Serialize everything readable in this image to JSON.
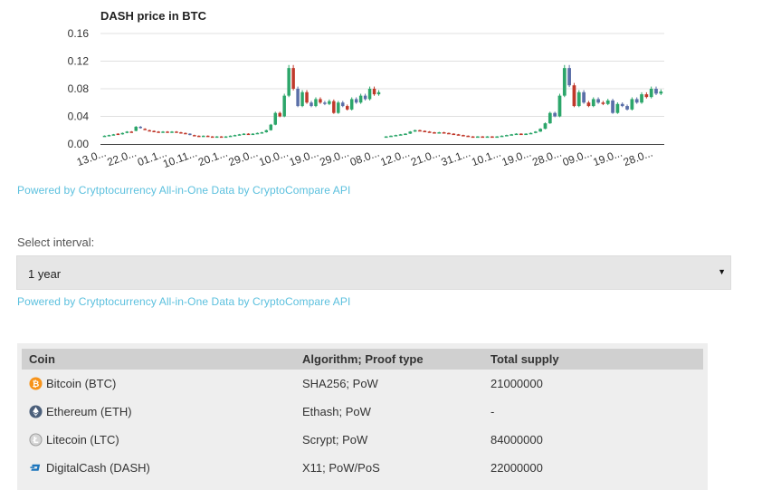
{
  "chart_data": {
    "type": "candlestick",
    "title": "DASH price in BTC",
    "y_ticks": [
      "0.16",
      "0.12",
      "0.08",
      "0.04",
      "0.00"
    ],
    "ylim": [
      0,
      0.16
    ],
    "x_ticks": [
      "13.0...",
      "22.0...",
      "01.1...",
      "10.11...",
      "20.1...",
      "29.0...",
      "10.0...",
      "19.0...",
      "29.0...",
      "08.0...",
      "12.0...",
      "21.0...",
      "31.1...",
      "10.1...",
      "19.0...",
      "28.0...",
      "09.0...",
      "19.0...",
      "28.0..."
    ],
    "panels": [
      {
        "candles": [
          [
            0.011,
            0.012
          ],
          [
            0.012,
            0.013
          ],
          [
            0.013,
            0.014
          ],
          [
            0.015,
            0.014
          ],
          [
            0.014,
            0.016
          ],
          [
            0.016,
            0.018
          ],
          [
            0.018,
            0.017
          ],
          [
            0.019,
            0.025
          ],
          [
            0.025,
            0.023
          ],
          [
            0.022,
            0.021
          ],
          [
            0.02,
            0.019
          ],
          [
            0.019,
            0.018
          ],
          [
            0.018,
            0.017
          ],
          [
            0.017,
            0.018
          ],
          [
            0.018,
            0.017
          ],
          [
            0.017,
            0.018
          ],
          [
            0.018,
            0.017
          ],
          [
            0.017,
            0.016
          ],
          [
            0.016,
            0.015
          ],
          [
            0.015,
            0.013
          ],
          [
            0.013,
            0.012
          ],
          [
            0.012,
            0.011
          ],
          [
            0.011,
            0.012
          ],
          [
            0.012,
            0.011
          ],
          [
            0.011,
            0.01
          ],
          [
            0.01,
            0.011
          ],
          [
            0.011,
            0.01
          ],
          [
            0.01,
            0.011
          ],
          [
            0.011,
            0.012
          ],
          [
            0.012,
            0.013
          ],
          [
            0.013,
            0.014
          ],
          [
            0.014,
            0.015
          ],
          [
            0.015,
            0.014
          ],
          [
            0.014,
            0.015
          ],
          [
            0.015,
            0.016
          ],
          [
            0.016,
            0.017
          ],
          [
            0.017,
            0.02
          ],
          [
            0.02,
            0.028
          ],
          [
            0.028,
            0.045
          ],
          [
            0.045,
            0.04
          ],
          [
            0.04,
            0.07
          ],
          [
            0.07,
            0.11
          ],
          [
            0.11,
            0.08
          ],
          [
            0.08,
            0.055
          ],
          [
            0.055,
            0.075
          ],
          [
            0.075,
            0.06
          ],
          [
            0.06,
            0.055
          ],
          [
            0.055,
            0.065
          ],
          [
            0.065,
            0.06
          ],
          [
            0.06,
            0.058
          ],
          [
            0.058,
            0.062
          ],
          [
            0.062,
            0.045
          ],
          [
            0.045,
            0.06
          ],
          [
            0.06,
            0.055
          ],
          [
            0.055,
            0.05
          ],
          [
            0.05,
            0.065
          ],
          [
            0.065,
            0.06
          ],
          [
            0.06,
            0.07
          ],
          [
            0.07,
            0.065
          ],
          [
            0.065,
            0.08
          ],
          [
            0.08,
            0.072
          ],
          [
            0.072,
            0.075
          ]
        ]
      },
      {
        "candles": [
          [
            0.01,
            0.011
          ],
          [
            0.011,
            0.012
          ],
          [
            0.012,
            0.013
          ],
          [
            0.013,
            0.014
          ],
          [
            0.014,
            0.015
          ],
          [
            0.015,
            0.018
          ],
          [
            0.018,
            0.02
          ],
          [
            0.02,
            0.019
          ],
          [
            0.019,
            0.018
          ],
          [
            0.018,
            0.017
          ],
          [
            0.017,
            0.016
          ],
          [
            0.016,
            0.017
          ],
          [
            0.017,
            0.016
          ],
          [
            0.016,
            0.015
          ],
          [
            0.015,
            0.014
          ],
          [
            0.014,
            0.013
          ],
          [
            0.013,
            0.012
          ],
          [
            0.012,
            0.011
          ],
          [
            0.011,
            0.01
          ],
          [
            0.01,
            0.011
          ],
          [
            0.011,
            0.01
          ],
          [
            0.01,
            0.011
          ],
          [
            0.011,
            0.01
          ],
          [
            0.01,
            0.011
          ],
          [
            0.011,
            0.012
          ],
          [
            0.012,
            0.013
          ],
          [
            0.013,
            0.014
          ],
          [
            0.014,
            0.015
          ],
          [
            0.015,
            0.014
          ],
          [
            0.014,
            0.015
          ],
          [
            0.015,
            0.016
          ],
          [
            0.016,
            0.018
          ],
          [
            0.018,
            0.022
          ],
          [
            0.022,
            0.03
          ],
          [
            0.03,
            0.045
          ],
          [
            0.045,
            0.04
          ],
          [
            0.04,
            0.07
          ],
          [
            0.07,
            0.11
          ],
          [
            0.11,
            0.085
          ],
          [
            0.085,
            0.055
          ],
          [
            0.055,
            0.075
          ],
          [
            0.075,
            0.06
          ],
          [
            0.06,
            0.055
          ],
          [
            0.055,
            0.065
          ],
          [
            0.065,
            0.06
          ],
          [
            0.06,
            0.058
          ],
          [
            0.058,
            0.063
          ],
          [
            0.063,
            0.045
          ],
          [
            0.045,
            0.058
          ],
          [
            0.058,
            0.055
          ],
          [
            0.055,
            0.05
          ],
          [
            0.05,
            0.065
          ],
          [
            0.065,
            0.06
          ],
          [
            0.06,
            0.072
          ],
          [
            0.072,
            0.068
          ],
          [
            0.068,
            0.08
          ],
          [
            0.08,
            0.073
          ],
          [
            0.073,
            0.076
          ]
        ]
      }
    ],
    "colors": {
      "up": "#2ca66a",
      "down": "#c0392b",
      "neutral": "#5a6fa8",
      "axis": "#444444",
      "grid": "#e0e0e0"
    }
  },
  "links": {
    "powered_by": "Powered by Crytptocurrency All-in-One Data by CryptoCompare API"
  },
  "interval": {
    "label": "Select interval:",
    "value": "1 year",
    "arrow": "▼"
  },
  "table": {
    "headers": [
      "Coin",
      "Algorithm; Proof type",
      "Total supply"
    ],
    "rows": [
      {
        "icon": "bitcoin-icon",
        "icon_color": "#f7931a",
        "coin": "Bitcoin (BTC)",
        "algorithm": "SHA256; PoW",
        "supply": "21000000"
      },
      {
        "icon": "ethereum-icon",
        "icon_color": "#4b5f7a",
        "coin": "Ethereum (ETH)",
        "algorithm": "Ethash; PoW",
        "supply": "-"
      },
      {
        "icon": "litecoin-icon",
        "icon_color": "#a8a8a8",
        "coin": "Litecoin (LTC)",
        "algorithm": "Scrypt; PoW",
        "supply": "84000000"
      },
      {
        "icon": "dash-icon",
        "icon_color": "#1c75bc",
        "coin": "DigitalCash (DASH)",
        "algorithm": "X11; PoW/PoS",
        "supply": "22000000"
      }
    ]
  }
}
